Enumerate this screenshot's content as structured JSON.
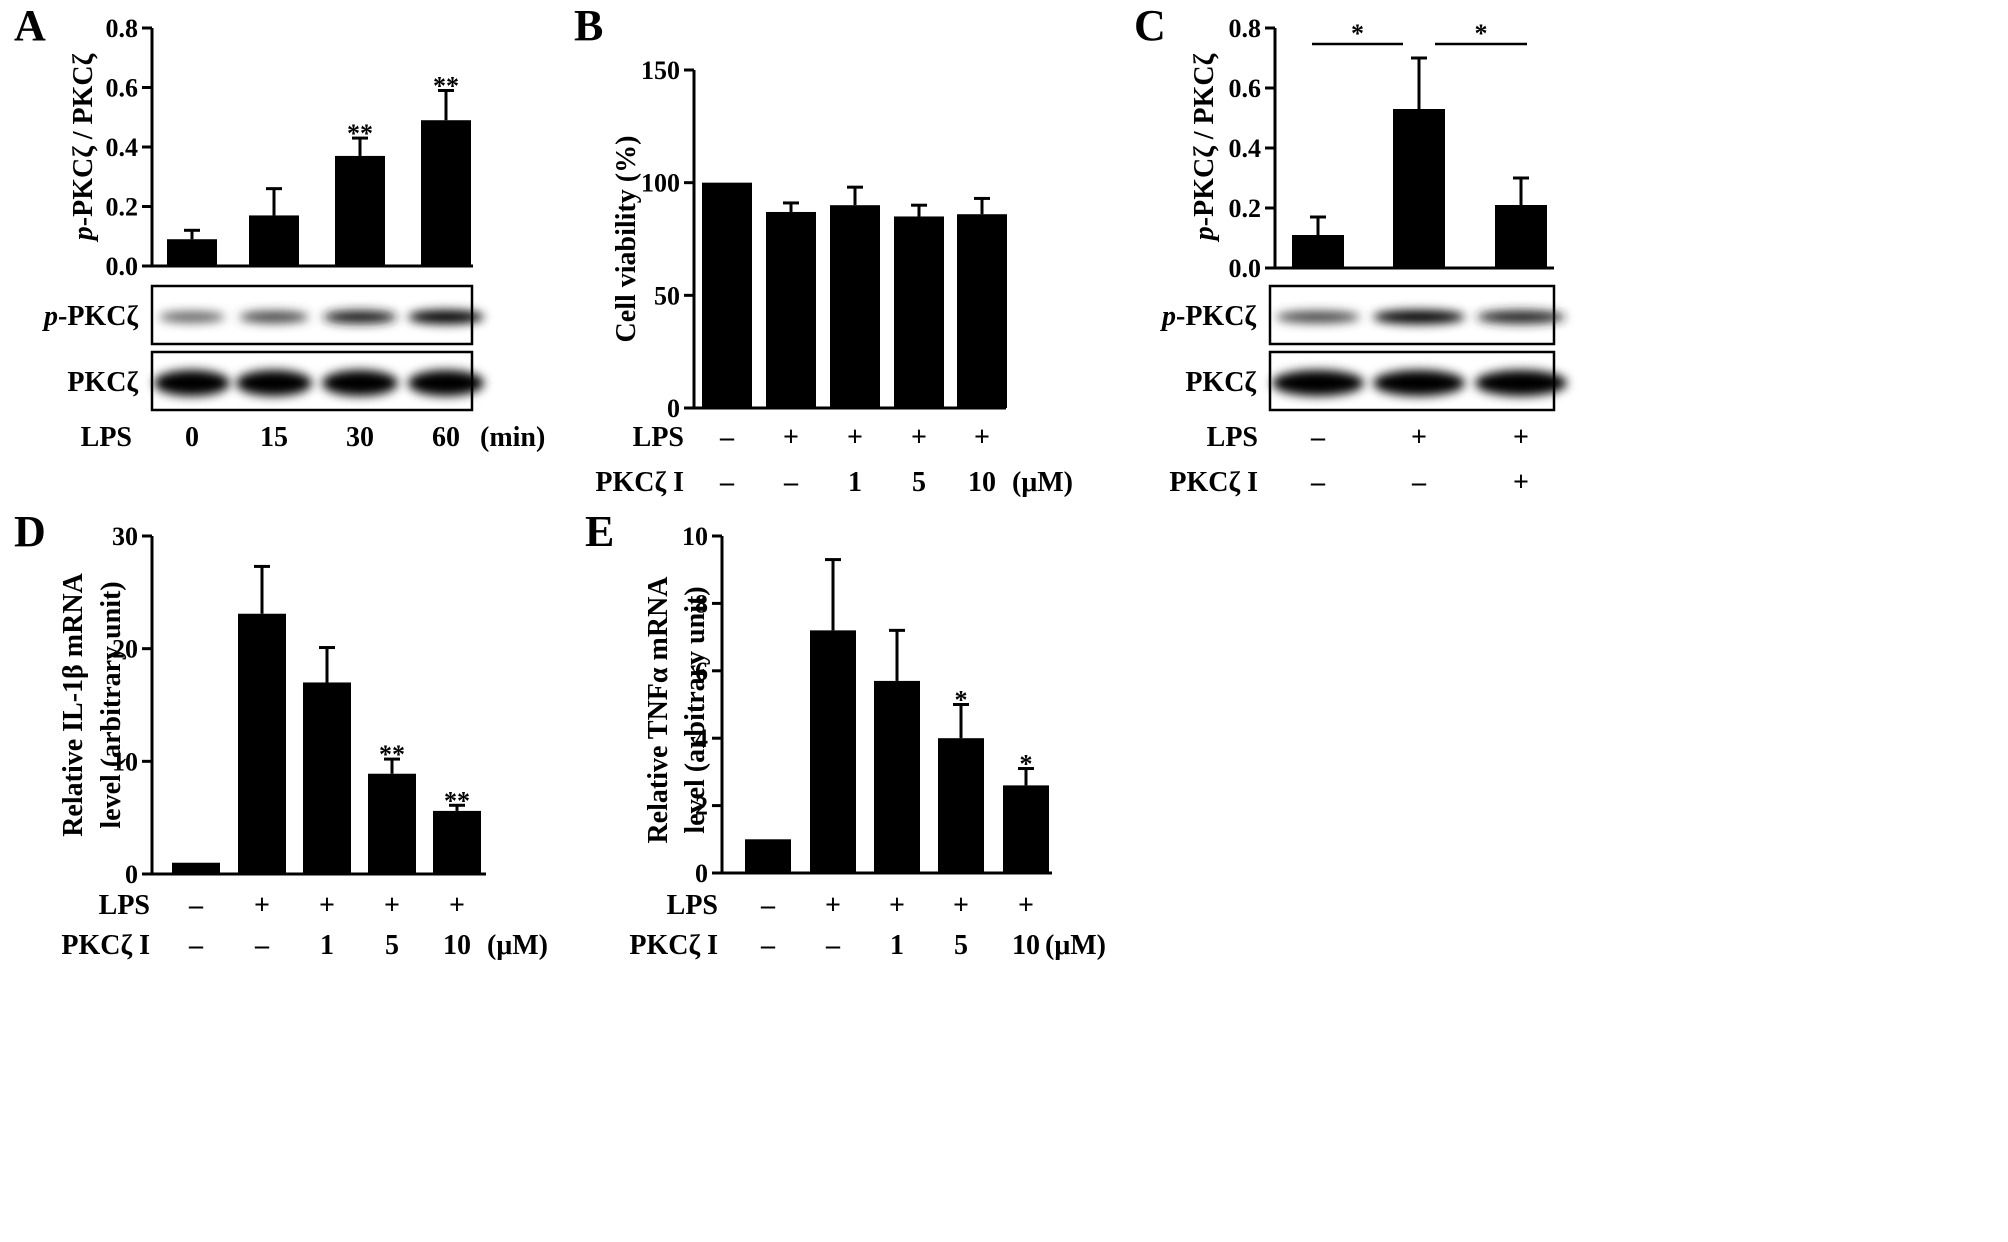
{
  "chart_data": [
    {
      "panel": "A",
      "type": "bar",
      "ylabel_italic": "p",
      "ylabel_rest": "-PKCζ / PKCζ",
      "ylim": [
        0,
        0.8
      ],
      "yticks": [
        "0.0",
        "0.2",
        "0.4",
        "0.6",
        "0.8"
      ],
      "categories": [
        "0",
        "15",
        "30",
        "60"
      ],
      "values": [
        0.09,
        0.17,
        0.37,
        0.49
      ],
      "errors": [
        0.03,
        0.09,
        0.06,
        0.1
      ],
      "sig": [
        "",
        "",
        "**",
        "**"
      ],
      "blot_rows": [
        {
          "label_italic": "p",
          "label_rest": "-PKCζ",
          "intensity": [
            0.35,
            0.55,
            0.85,
            1.0
          ]
        },
        {
          "label_italic": "",
          "label_rest": "PKCζ",
          "intensity": [
            1.0,
            1.0,
            1.0,
            1.0
          ]
        }
      ],
      "conditions": [
        {
          "label": "LPS",
          "values": [
            "0",
            "15",
            "30",
            "60"
          ],
          "unit": "(min)"
        }
      ]
    },
    {
      "panel": "B",
      "type": "bar",
      "ylabel": "Cell  viability  (%)",
      "ylim": [
        0,
        150
      ],
      "yticks": [
        "0",
        "50",
        "100",
        "150"
      ],
      "values": [
        100,
        87,
        90,
        85,
        86
      ],
      "errors": [
        0,
        4,
        8,
        5,
        7
      ],
      "sig": [
        "",
        "",
        "",
        "",
        ""
      ],
      "conditions": [
        {
          "label": "LPS",
          "values": [
            "–",
            "+",
            "+",
            "+",
            "+"
          ],
          "unit": ""
        },
        {
          "label": "PKCζ I",
          "values": [
            "–",
            "–",
            "1",
            "5",
            "10"
          ],
          "unit": "(μM)"
        }
      ]
    },
    {
      "panel": "C",
      "type": "bar",
      "ylabel_italic": "p",
      "ylabel_rest": "-PKCζ / PKCζ",
      "ylim": [
        0,
        0.8
      ],
      "yticks": [
        "0.0",
        "0.2",
        "0.4",
        "0.6",
        "0.8"
      ],
      "values": [
        0.11,
        0.53,
        0.21
      ],
      "errors": [
        0.06,
        0.17,
        0.09
      ],
      "brackets": [
        {
          "from": 0,
          "to": 1,
          "label": "*"
        },
        {
          "from": 1,
          "to": 2,
          "label": "*"
        }
      ],
      "blot_rows": [
        {
          "label_italic": "p",
          "label_rest": "-PKCζ",
          "intensity": [
            0.55,
            1.0,
            0.8
          ]
        },
        {
          "label_italic": "",
          "label_rest": "PKCζ",
          "intensity": [
            1.0,
            1.0,
            1.0
          ]
        }
      ],
      "conditions": [
        {
          "label": "LPS",
          "values": [
            "–",
            "+",
            "+"
          ],
          "unit": ""
        },
        {
          "label": "PKCζ I",
          "values": [
            "–",
            "–",
            "+"
          ],
          "unit": ""
        }
      ]
    },
    {
      "panel": "D",
      "type": "bar",
      "ylabel_line1": "Relative IL-1β mRNA",
      "ylabel_line2": "level  (arbitrary unit)",
      "ylim": [
        0,
        30
      ],
      "yticks": [
        "0",
        "10",
        "20",
        "30"
      ],
      "values": [
        1,
        23.1,
        17,
        8.9,
        5.6
      ],
      "errors": [
        0,
        4.2,
        3.1,
        1.3,
        0.5
      ],
      "sig": [
        "",
        "",
        "",
        "**",
        "**"
      ],
      "conditions": [
        {
          "label": "LPS",
          "values": [
            "–",
            "+",
            "+",
            "+",
            "+"
          ],
          "unit": ""
        },
        {
          "label": "PKCζ I",
          "values": [
            "–",
            "–",
            "1",
            "5",
            "10"
          ],
          "unit": "(μM)"
        }
      ]
    },
    {
      "panel": "E",
      "type": "bar",
      "ylabel_line1": "Relative TNFα mRNA",
      "ylabel_line2": "level  (arbitrary unit)",
      "ylim": [
        0,
        10
      ],
      "yticks": [
        "0",
        "2",
        "4",
        "6",
        "8",
        "10"
      ],
      "values": [
        1,
        7.2,
        5.7,
        4.0,
        2.6
      ],
      "errors": [
        0,
        2.1,
        1.5,
        1.0,
        0.5
      ],
      "sig": [
        "",
        "",
        "",
        "*",
        "*"
      ],
      "conditions": [
        {
          "label": "LPS",
          "values": [
            "–",
            "+",
            "+",
            "+",
            "+"
          ],
          "unit": ""
        },
        {
          "label": "PKCζ I",
          "values": [
            "–",
            "–",
            "1",
            "5",
            "10"
          ],
          "unit": "(μM)"
        }
      ]
    }
  ]
}
